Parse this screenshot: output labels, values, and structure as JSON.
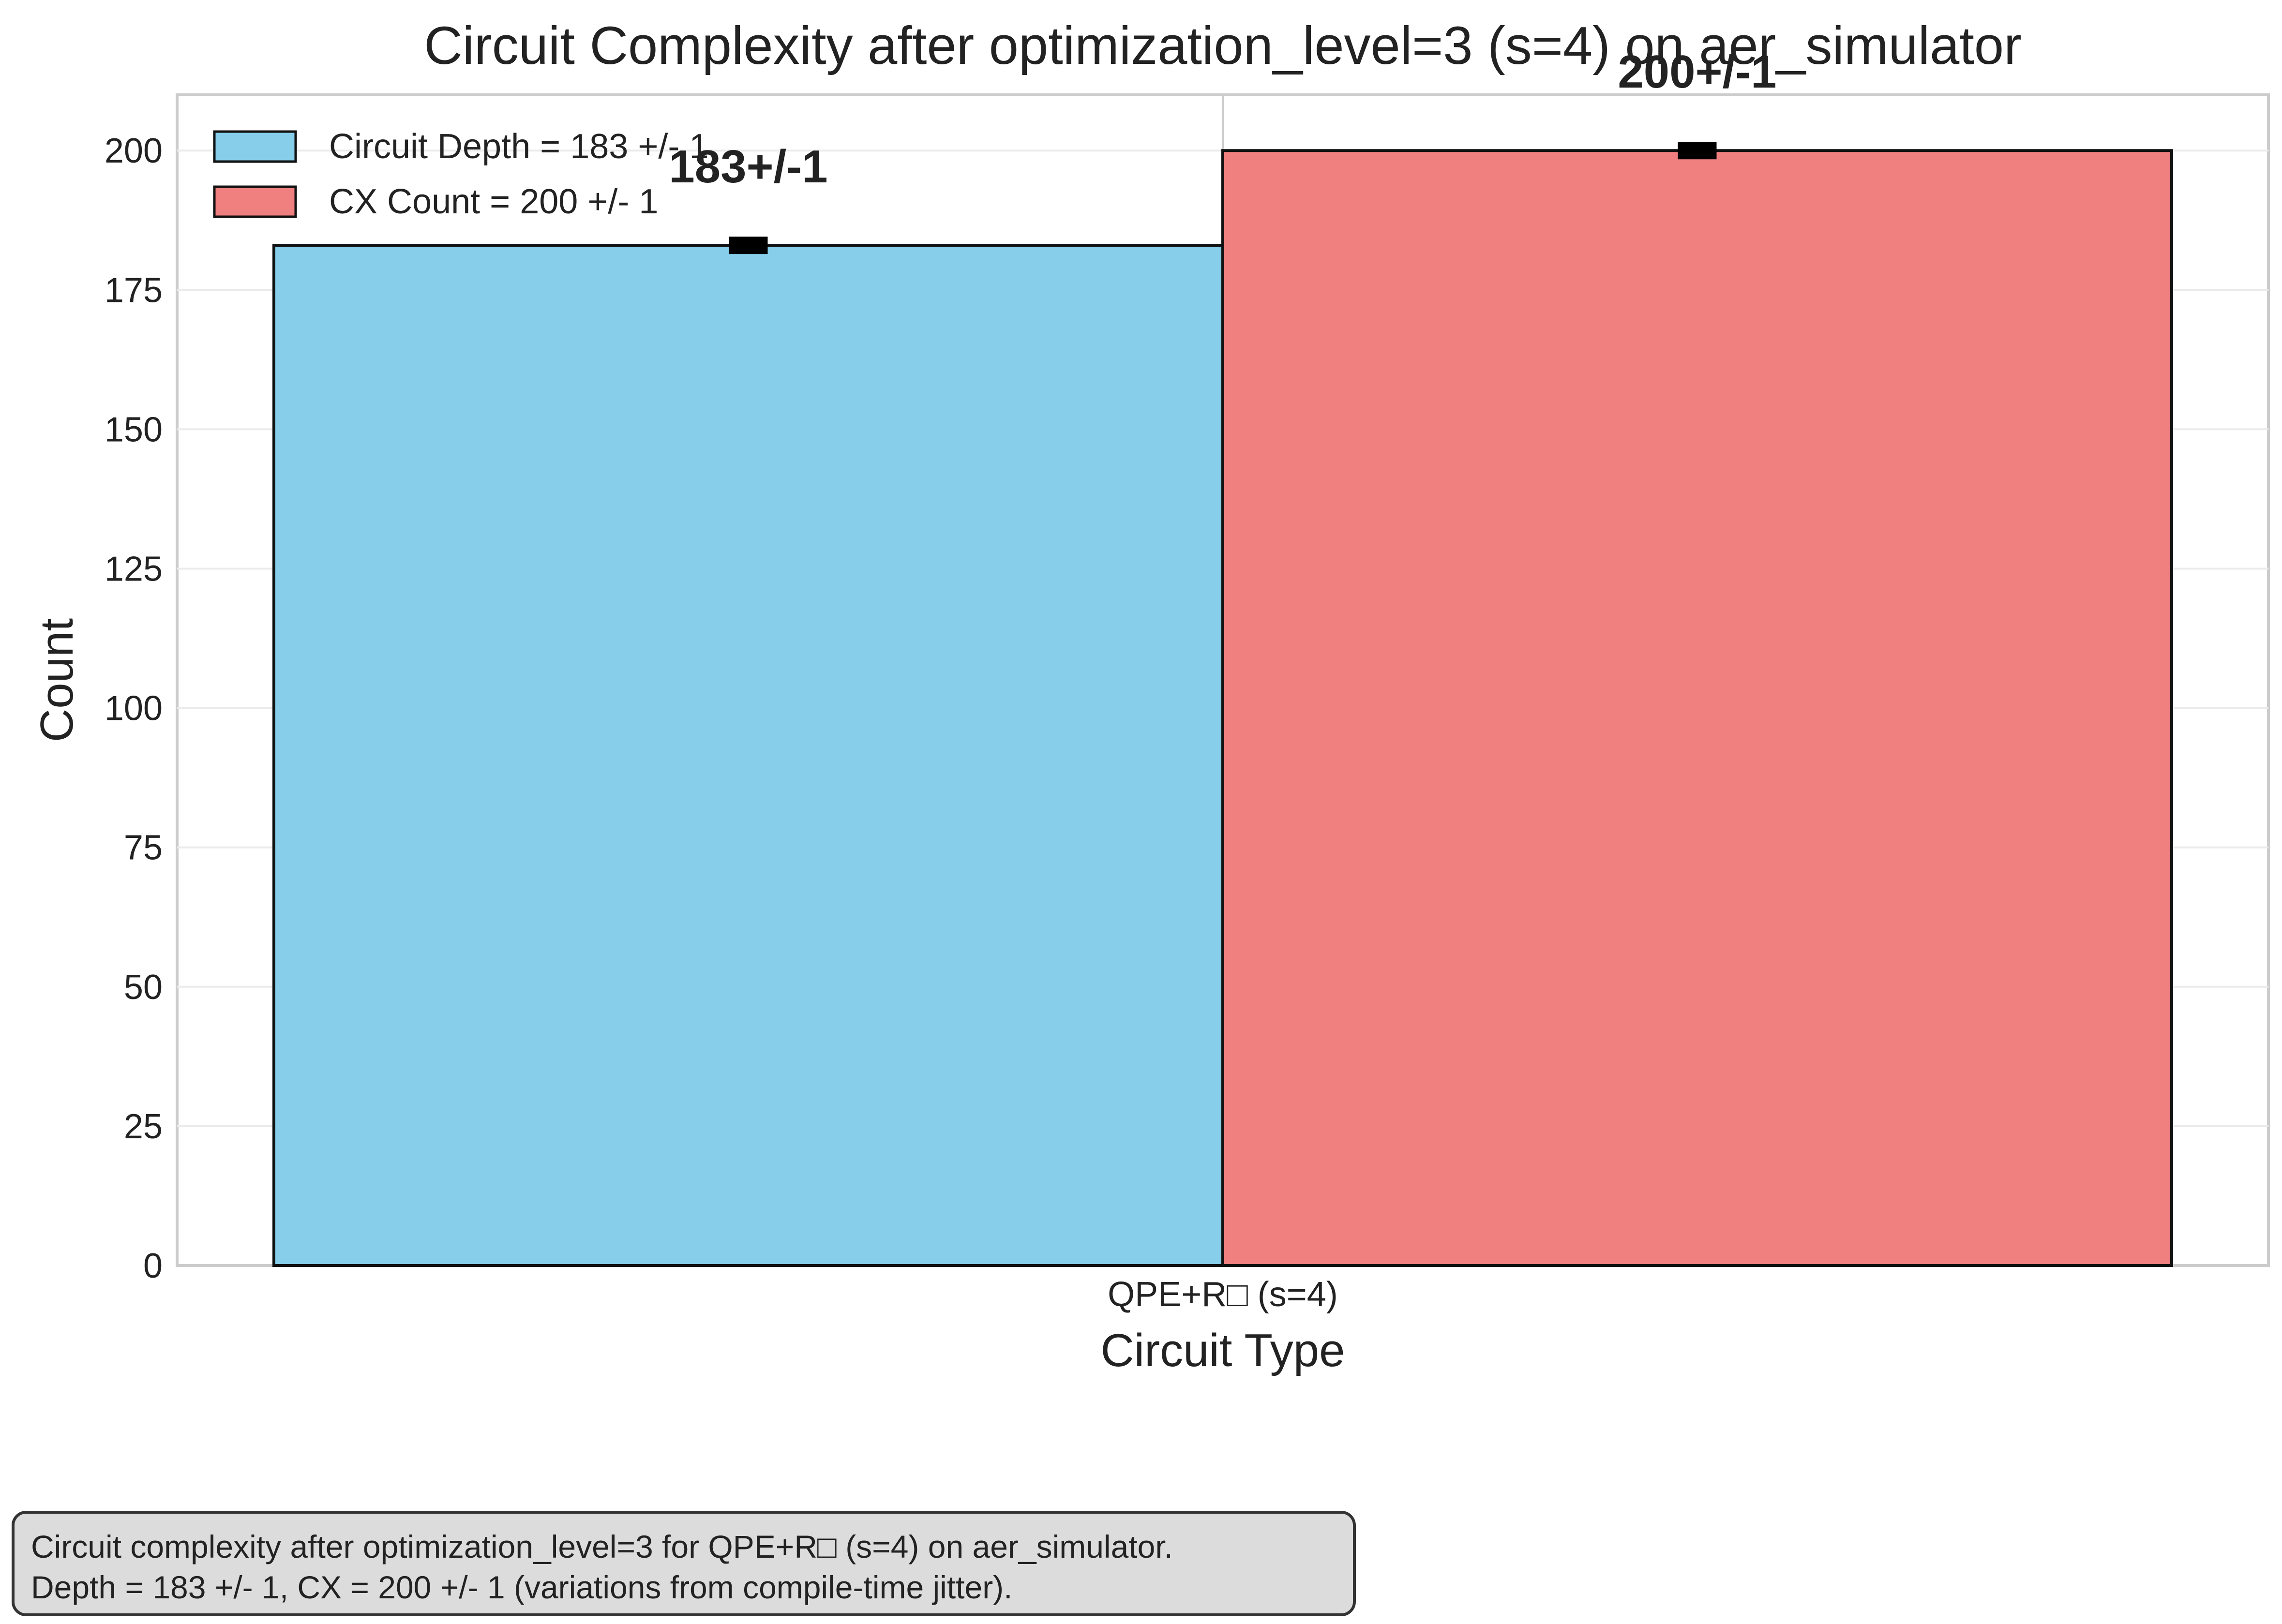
{
  "chart_data": {
    "type": "bar",
    "title": "Circuit Complexity after optimization_level=3 (s=4) on aer_simulator",
    "xlabel": "Circuit Type",
    "ylabel": "Count",
    "categories": [
      "QPE+R□ (s=4)"
    ],
    "ylim": [
      0,
      210
    ],
    "yticks": [
      0,
      25,
      50,
      75,
      100,
      125,
      150,
      175,
      200
    ],
    "grid": true,
    "legend_position": "top-left",
    "series": [
      {
        "name": "Circuit Depth = 183 +/- 1",
        "values": [
          183
        ],
        "error": [
          1
        ],
        "color": "#87CEEB",
        "label": "183+/-1"
      },
      {
        "name": "CX Count = 200 +/- 1",
        "values": [
          200
        ],
        "error": [
          1
        ],
        "color": "#F08080",
        "label": "200+/-1"
      }
    ]
  },
  "caption": {
    "line1": "Circuit complexity after optimization_level=3 for QPE+R□ (s=4) on aer_simulator.",
    "line2": "Depth = 183 +/- 1, CX = 200 +/- 1 (variations from compile-time jitter)."
  }
}
